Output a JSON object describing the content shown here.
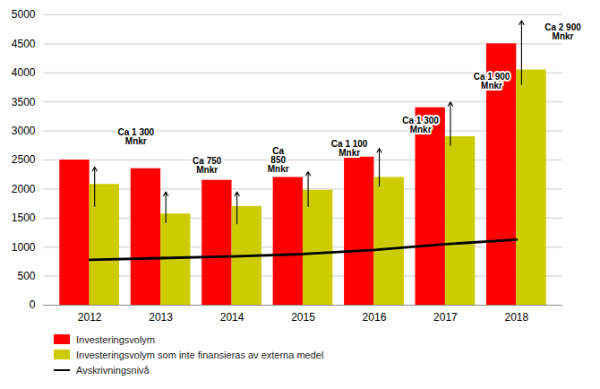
{
  "chart_data": {
    "type": "bar",
    "categories": [
      "2012",
      "2013",
      "2014",
      "2015",
      "2016",
      "2017",
      "2018"
    ],
    "series": [
      {
        "name": "Investeringsvolym",
        "color": "#FF0000",
        "values": [
          2500,
          2350,
          2150,
          2200,
          2550,
          3400,
          4500
        ]
      },
      {
        "name": "Investeringsvolym som inte finansieras av externa medel",
        "color": "#CCCC00",
        "values": [
          2080,
          1570,
          1700,
          1980,
          2200,
          2900,
          4050
        ]
      },
      {
        "name": "Avskrivningsnivå",
        "type": "line",
        "color": "#000000",
        "values": [
          780,
          810,
          840,
          880,
          950,
          1050,
          1130
        ]
      }
    ],
    "ylim": [
      0,
      5000
    ],
    "yticks": [
      0,
      500,
      1000,
      1500,
      2000,
      2500,
      3000,
      3500,
      4000,
      4500,
      5000
    ],
    "grid": true,
    "legend": "bottom",
    "annotations": [
      {
        "text": "Ca 1 300\nMnkr",
        "category": "2012",
        "y": 2900,
        "arrow": [
          1700,
          2380
        ]
      },
      {
        "text": "Ca 750\nMnkr",
        "category": "2013",
        "y": 2400,
        "arrow": [
          1420,
          1950
        ]
      },
      {
        "text": "Ca\n850\nMnkr",
        "category": "2014",
        "y": 2500,
        "arrow": [
          1400,
          1950
        ]
      },
      {
        "text": "Ca 1 100\nMnkr",
        "category": "2015",
        "y": 2700,
        "arrow": [
          1700,
          2300
        ]
      },
      {
        "text": "Ca 1 300\nMnkr",
        "category": "2016",
        "y": 3100,
        "arrow": [
          2050,
          2700
        ]
      },
      {
        "text": "Ca 1 900\nMnkr",
        "category": "2017",
        "y": 3850,
        "arrow": [
          2750,
          3500
        ]
      },
      {
        "text": "Ca 2 900\nMnkr",
        "category": "2018",
        "y": 4700,
        "arrow": [
          3800,
          4900
        ]
      }
    ]
  }
}
